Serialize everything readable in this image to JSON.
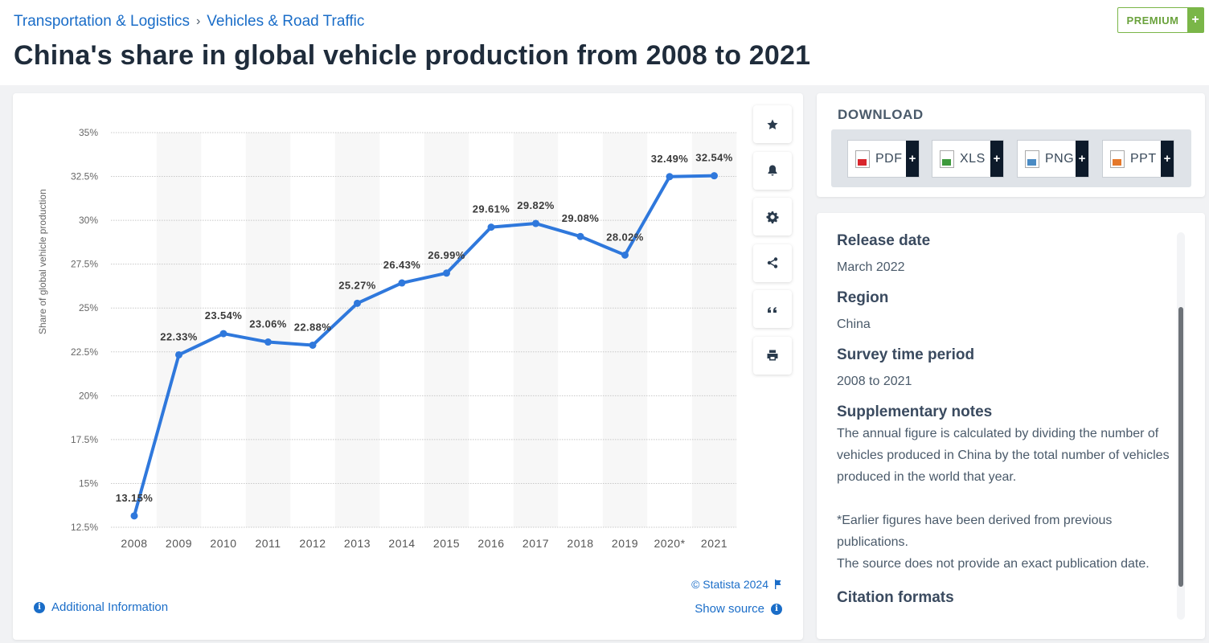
{
  "breadcrumb": {
    "item1": "Transportation & Logistics",
    "sep": "›",
    "item2": "Vehicles & Road Traffic"
  },
  "title": "China's share in global vehicle production from 2008 to 2021",
  "premium": {
    "label": "PREMIUM",
    "plus": "+"
  },
  "tools": [
    "star-icon",
    "bell-icon",
    "gear-icon",
    "share-icon",
    "quote-icon",
    "print-icon"
  ],
  "chart_data": {
    "type": "line",
    "categories": [
      "2008",
      "2009",
      "2010",
      "2011",
      "2012",
      "2013",
      "2014",
      "2015",
      "2016",
      "2017",
      "2018",
      "2019",
      "2020*",
      "2021"
    ],
    "series": [
      {
        "values": [
          13.15,
          22.33,
          23.54,
          23.06,
          22.88,
          25.27,
          26.43,
          26.99,
          29.61,
          29.82,
          29.08,
          28.02,
          32.49,
          32.54
        ]
      }
    ],
    "data_labels": [
      "13.15%",
      "22.33%",
      "23.54%",
      "23.06%",
      "22.88%",
      "25.27%",
      "26.43%",
      "26.99%",
      "29.61%",
      "29.82%",
      "29.08%",
      "28.02%",
      "32.49%",
      "32.54%"
    ],
    "yticks": [
      12.5,
      15,
      17.5,
      20,
      22.5,
      25,
      27.5,
      30,
      32.5,
      35
    ],
    "ytick_labels": [
      "12.5%",
      "15%",
      "17.5%",
      "20%",
      "22.5%",
      "25%",
      "27.5%",
      "30%",
      "32.5%",
      "35%"
    ],
    "ylim": [
      12.5,
      35
    ],
    "ylabel": "Share of global vehicle production",
    "xlabel": "",
    "grid": true,
    "line_color": "#2f78dc"
  },
  "footer": {
    "additional_info": "Additional Information",
    "copyright": "© Statista 2024",
    "show_source": "Show source"
  },
  "download": {
    "title": "DOWNLOAD",
    "buttons": [
      {
        "label": "PDF",
        "plus": "+"
      },
      {
        "label": "XLS",
        "plus": "+"
      },
      {
        "label": "PNG",
        "plus": "+"
      },
      {
        "label": "PPT",
        "plus": "+"
      }
    ]
  },
  "info": {
    "release_h": "Release date",
    "release_v": "March 2022",
    "region_h": "Region",
    "region_v": "China",
    "survey_h": "Survey time period",
    "survey_v": "2008 to 2021",
    "notes_h": "Supplementary notes",
    "notes_p1": "The annual figure is calculated by dividing the number of vehicles produced in China by the total number of vehicles produced in the world that year.",
    "notes_p2": "*Earlier figures have been derived from previous publications.",
    "notes_p3": "The source does not provide an exact publication date.",
    "citation_h": "Citation formats"
  }
}
